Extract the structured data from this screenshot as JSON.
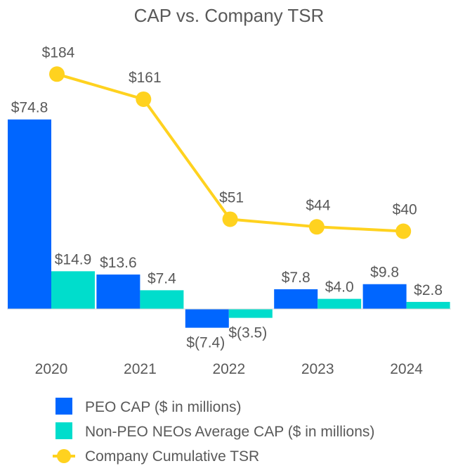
{
  "chart_data": {
    "type": "bar+line",
    "title": "CAP vs. Company TSR",
    "categories": [
      "2020",
      "2021",
      "2022",
      "2023",
      "2024"
    ],
    "series": [
      {
        "name": "PEO CAP ($ in millions)",
        "kind": "bar",
        "color": "#0066FF",
        "values": [
          74.8,
          13.6,
          -7.4,
          7.8,
          9.8
        ],
        "labels": [
          "$74.8",
          "$13.6",
          "$(7.4)",
          "$7.8",
          "$9.8"
        ]
      },
      {
        "name": "Non-PEO NEOs Average CAP ($ in millions)",
        "kind": "bar",
        "color": "#00DDCC",
        "values": [
          14.9,
          7.4,
          -3.5,
          4.0,
          2.8
        ],
        "labels": [
          "$14.9",
          "$7.4",
          "$(3.5)",
          "$4.0",
          "$2.8"
        ]
      },
      {
        "name": "Company Cumulative TSR",
        "kind": "line",
        "color": "#FFD21F",
        "values": [
          184,
          161,
          51,
          44,
          40
        ],
        "labels": [
          "$184",
          "$161",
          "$51",
          "$44",
          "$40"
        ]
      }
    ],
    "legend_position": "bottom",
    "grid": false
  }
}
